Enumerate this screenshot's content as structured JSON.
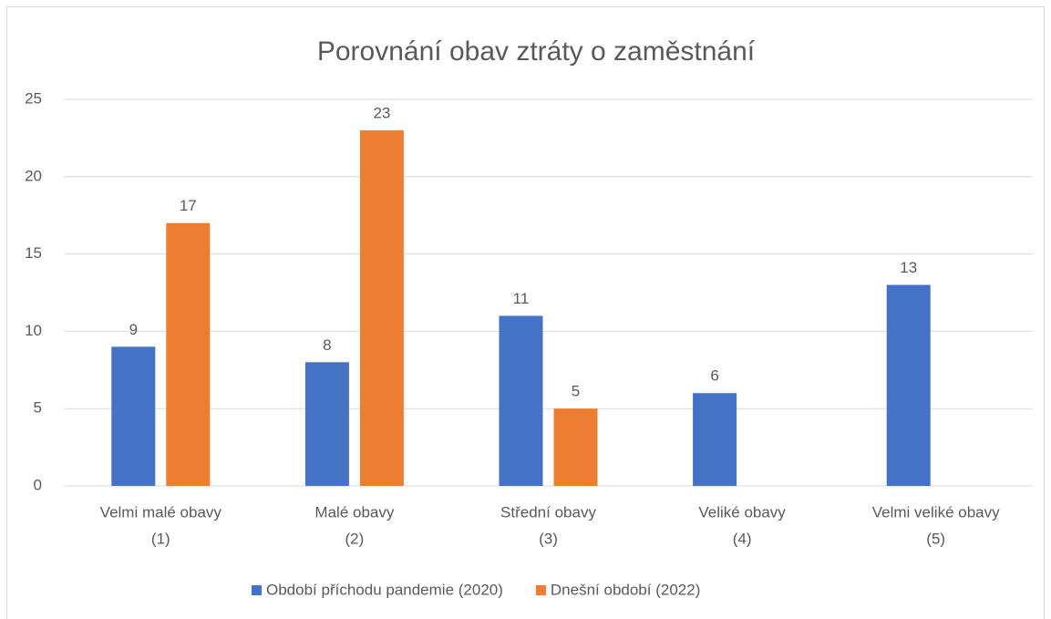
{
  "chart_data": {
    "type": "bar",
    "title": "Porovnání obav ztráty o zaměstnání",
    "categories": [
      [
        "Velmi malé obavy",
        "(1)"
      ],
      [
        "Malé obavy",
        "(2)"
      ],
      [
        "Střední obavy",
        "(3)"
      ],
      [
        "Veliké obavy",
        "(4)"
      ],
      [
        "Velmi veliké obavy",
        "(5)"
      ]
    ],
    "series": [
      {
        "name": "Období příchodu pandemie (2020)",
        "color": "#4472c4",
        "values": [
          9,
          8,
          11,
          6,
          13
        ]
      },
      {
        "name": "Dnešní období (2022)",
        "color": "#ed7d31",
        "values": [
          17,
          23,
          5,
          null,
          null
        ]
      }
    ],
    "ylim": [
      0,
      25
    ],
    "yticks": [
      0,
      5,
      10,
      15,
      20,
      25
    ],
    "grid": true,
    "legend": "bottom"
  }
}
